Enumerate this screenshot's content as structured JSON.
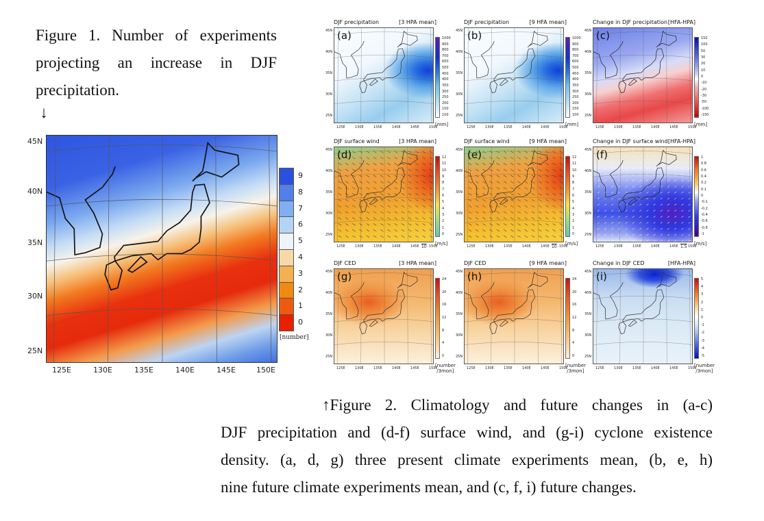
{
  "figure1": {
    "caption_lines": [
      "Figure 1. Number of experiments",
      "projecting an increase in DJF",
      "precipitation."
    ],
    "arrow": "↓",
    "lat_labels": [
      "45N",
      "40N",
      "35N",
      "30N",
      "25N"
    ],
    "lon_labels": [
      "125E",
      "130E",
      "135E",
      "140E",
      "145E",
      "150E"
    ],
    "colorbar": {
      "labels": [
        "9",
        "8",
        "7",
        "6",
        "5",
        "4",
        "3",
        "2",
        "1",
        "0"
      ],
      "colors": [
        "#2a50e0",
        "#5080e8",
        "#80aef0",
        "#b4d4f4",
        "#eef4fa",
        "#f8d8a8",
        "#f5b050",
        "#f08a10",
        "#f05a10",
        "#e82000"
      ],
      "unit": "[number]"
    }
  },
  "figure2": {
    "lon_labels": [
      "125E",
      "130E",
      "135E",
      "140E",
      "145E",
      "150E"
    ],
    "lat_labels": [
      "45N",
      "40N",
      "35N",
      "30N",
      "25N"
    ],
    "panels": [
      {
        "letter": "(a)",
        "title": "DJF precipitation",
        "tag": "[3 HPA mean]",
        "cb": [
          "1000",
          "900",
          "800",
          "700",
          "600",
          "500",
          "450",
          "400",
          "350",
          "300",
          "250",
          "200",
          "150",
          "100"
        ],
        "unit": "[mm]",
        "ref": ""
      },
      {
        "letter": "(b)",
        "title": "DJF precipitation",
        "tag": "[9 HFA mean]",
        "cb": [
          "1000",
          "900",
          "800",
          "700",
          "600",
          "500",
          "450",
          "400",
          "350",
          "300",
          "250",
          "200",
          "150",
          "100"
        ],
        "unit": "[mm]",
        "ref": ""
      },
      {
        "letter": "(c)",
        "title": "Change in DJF precipitation",
        "tag": "[HFA-HPA]",
        "cb": [
          "150",
          "100",
          "50",
          "30",
          "20",
          "10",
          "0",
          "-10",
          "-20",
          "-30",
          "-50",
          "-100",
          "-150"
        ],
        "unit": "[mm]",
        "ref": ""
      },
      {
        "letter": "(d)",
        "title": "DJF surface wind",
        "tag": "[3 HPA mean]",
        "cb": [
          "12",
          "11",
          "10",
          "9",
          "8",
          "7",
          "6",
          "5",
          "4",
          "3",
          "2",
          "1",
          "0"
        ],
        "unit": "[m/s]",
        "ref": "10"
      },
      {
        "letter": "(e)",
        "title": "DJF surface wind",
        "tag": "[9 HFA mean]",
        "cb": [
          "12",
          "11",
          "10",
          "9",
          "8",
          "7",
          "6",
          "5",
          "4",
          "3",
          "2",
          "1",
          "0"
        ],
        "unit": "[m/s]",
        "ref": "10"
      },
      {
        "letter": "(f)",
        "title": "Change in DJF surface wind",
        "tag": "[HFA-HPA]",
        "cb": [
          "1",
          "0.8",
          "0.6",
          "0.4",
          "0.2",
          "0.1",
          "0",
          "-0.1",
          "-0.2",
          "-0.4",
          "-0.6",
          "-0.8",
          "-1"
        ],
        "unit": "[m/s]",
        "ref": "1.5"
      },
      {
        "letter": "(g)",
        "title": "DJF CED",
        "tag": "[3 HPA mean]",
        "cb": [
          "24",
          "20",
          "16",
          "12",
          "8",
          "4",
          "0"
        ],
        "unit": "[number\n /3mon]",
        "ref": ""
      },
      {
        "letter": "(h)",
        "title": "DJF CED",
        "tag": "[9 HFA mean]",
        "cb": [
          "24",
          "20",
          "16",
          "12",
          "8",
          "4",
          "0"
        ],
        "unit": "[number\n /3mon]",
        "ref": ""
      },
      {
        "letter": "(i)",
        "title": "Change in DJF CED",
        "tag": "[HFA-HPA]",
        "cb": [
          "5",
          "4",
          "3",
          "2",
          "1",
          "0",
          "-1",
          "-2",
          "-3",
          "-4",
          "-5"
        ],
        "unit": "[number\n /3mon]",
        "ref": ""
      }
    ],
    "caption_lines": [
      "↑Figure 2. Climatology and future changes in (a-c)",
      "DJF precipitation and (d-f) surface wind, and (g-i) cyclone existence",
      "density. (a, d, g) three present climate experiments mean, (b, e, h)",
      "nine future climate experiments mean, and (c, f, i) future changes."
    ]
  }
}
